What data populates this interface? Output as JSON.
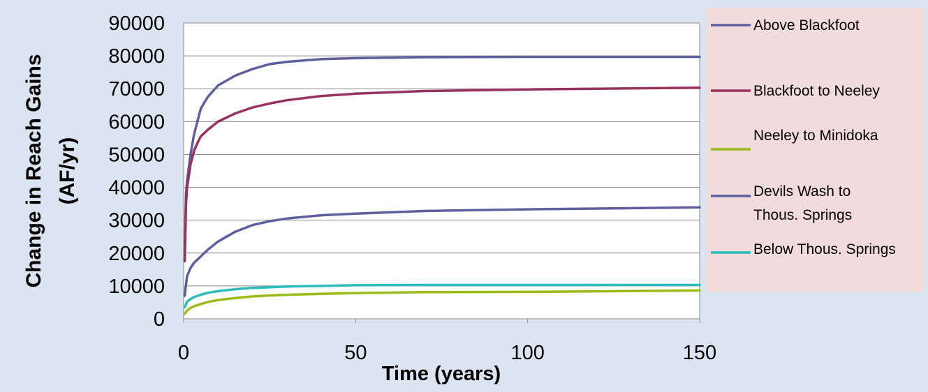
{
  "chart_data": {
    "type": "line",
    "title": "",
    "xlabel": "Time (years)",
    "ylabel_line1": "Change in Reach Gains",
    "ylabel_line2": "(AF/yr)",
    "xlim": [
      0,
      150
    ],
    "ylim": [
      0,
      90000
    ],
    "xticks": [
      0,
      50,
      100,
      150
    ],
    "yticks": [
      0,
      10000,
      20000,
      30000,
      40000,
      50000,
      60000,
      70000,
      80000,
      90000
    ],
    "grid": "horizontal",
    "legend_position": "right",
    "series": [
      {
        "name": "Above Blackfoot",
        "color": "#5e5f9d",
        "x": [
          0.3,
          0.7,
          1,
          2,
          3,
          4,
          5,
          7,
          10,
          15,
          20,
          25,
          30,
          40,
          50,
          70,
          100,
          150
        ],
        "y": [
          18000,
          38000,
          42000,
          50000,
          56000,
          60000,
          64000,
          67500,
          71000,
          74000,
          76000,
          77500,
          78200,
          79000,
          79300,
          79600,
          79700,
          79700
        ]
      },
      {
        "name": "Blackfoot to Neeley",
        "color": "#983160",
        "x": [
          0.3,
          0.7,
          1,
          2,
          3,
          4,
          5,
          7,
          10,
          15,
          20,
          25,
          30,
          40,
          50,
          70,
          100,
          150
        ],
        "y": [
          17500,
          35000,
          40000,
          47000,
          51000,
          53500,
          55500,
          57500,
          60000,
          62500,
          64300,
          65500,
          66500,
          67800,
          68500,
          69300,
          69800,
          70300
        ]
      },
      {
        "name": "Neeley to Minidoka",
        "color": "#9bbb1a",
        "x": [
          0.3,
          1,
          2,
          3,
          5,
          7,
          10,
          15,
          20,
          25,
          30,
          40,
          50,
          70,
          100,
          150
        ],
        "y": [
          1500,
          2500,
          3300,
          3800,
          4500,
          5100,
          5700,
          6300,
          6800,
          7100,
          7300,
          7600,
          7800,
          8100,
          8200,
          8600
        ]
      },
      {
        "name": "Devils Wash to Thous. Springs",
        "color": "#5e5f9d",
        "x": [
          0.3,
          1,
          2,
          3,
          5,
          7,
          10,
          15,
          20,
          25,
          30,
          40,
          50,
          70,
          100,
          150
        ],
        "y": [
          7000,
          13000,
          15500,
          17000,
          19000,
          21000,
          23500,
          26500,
          28500,
          29700,
          30500,
          31500,
          32000,
          32800,
          33300,
          33900
        ]
      },
      {
        "name": "Below Thous. Springs",
        "color": "#2bbcbc",
        "x": [
          0.3,
          1,
          2,
          3,
          5,
          7,
          10,
          15,
          20,
          25,
          30,
          40,
          50,
          70,
          100,
          150
        ],
        "y": [
          3500,
          5200,
          6000,
          6600,
          7300,
          7900,
          8400,
          9000,
          9400,
          9600,
          9800,
          10000,
          10200,
          10300,
          10300,
          10300
        ]
      }
    ],
    "legend_lines": [
      [
        "Above Blackfoot"
      ],
      [
        "Blackfoot to Neeley"
      ],
      [
        "Neeley to Minidoka"
      ],
      [
        "Devils Wash to",
        "Thous. Springs"
      ],
      [
        "Below Thous. Springs"
      ]
    ]
  }
}
